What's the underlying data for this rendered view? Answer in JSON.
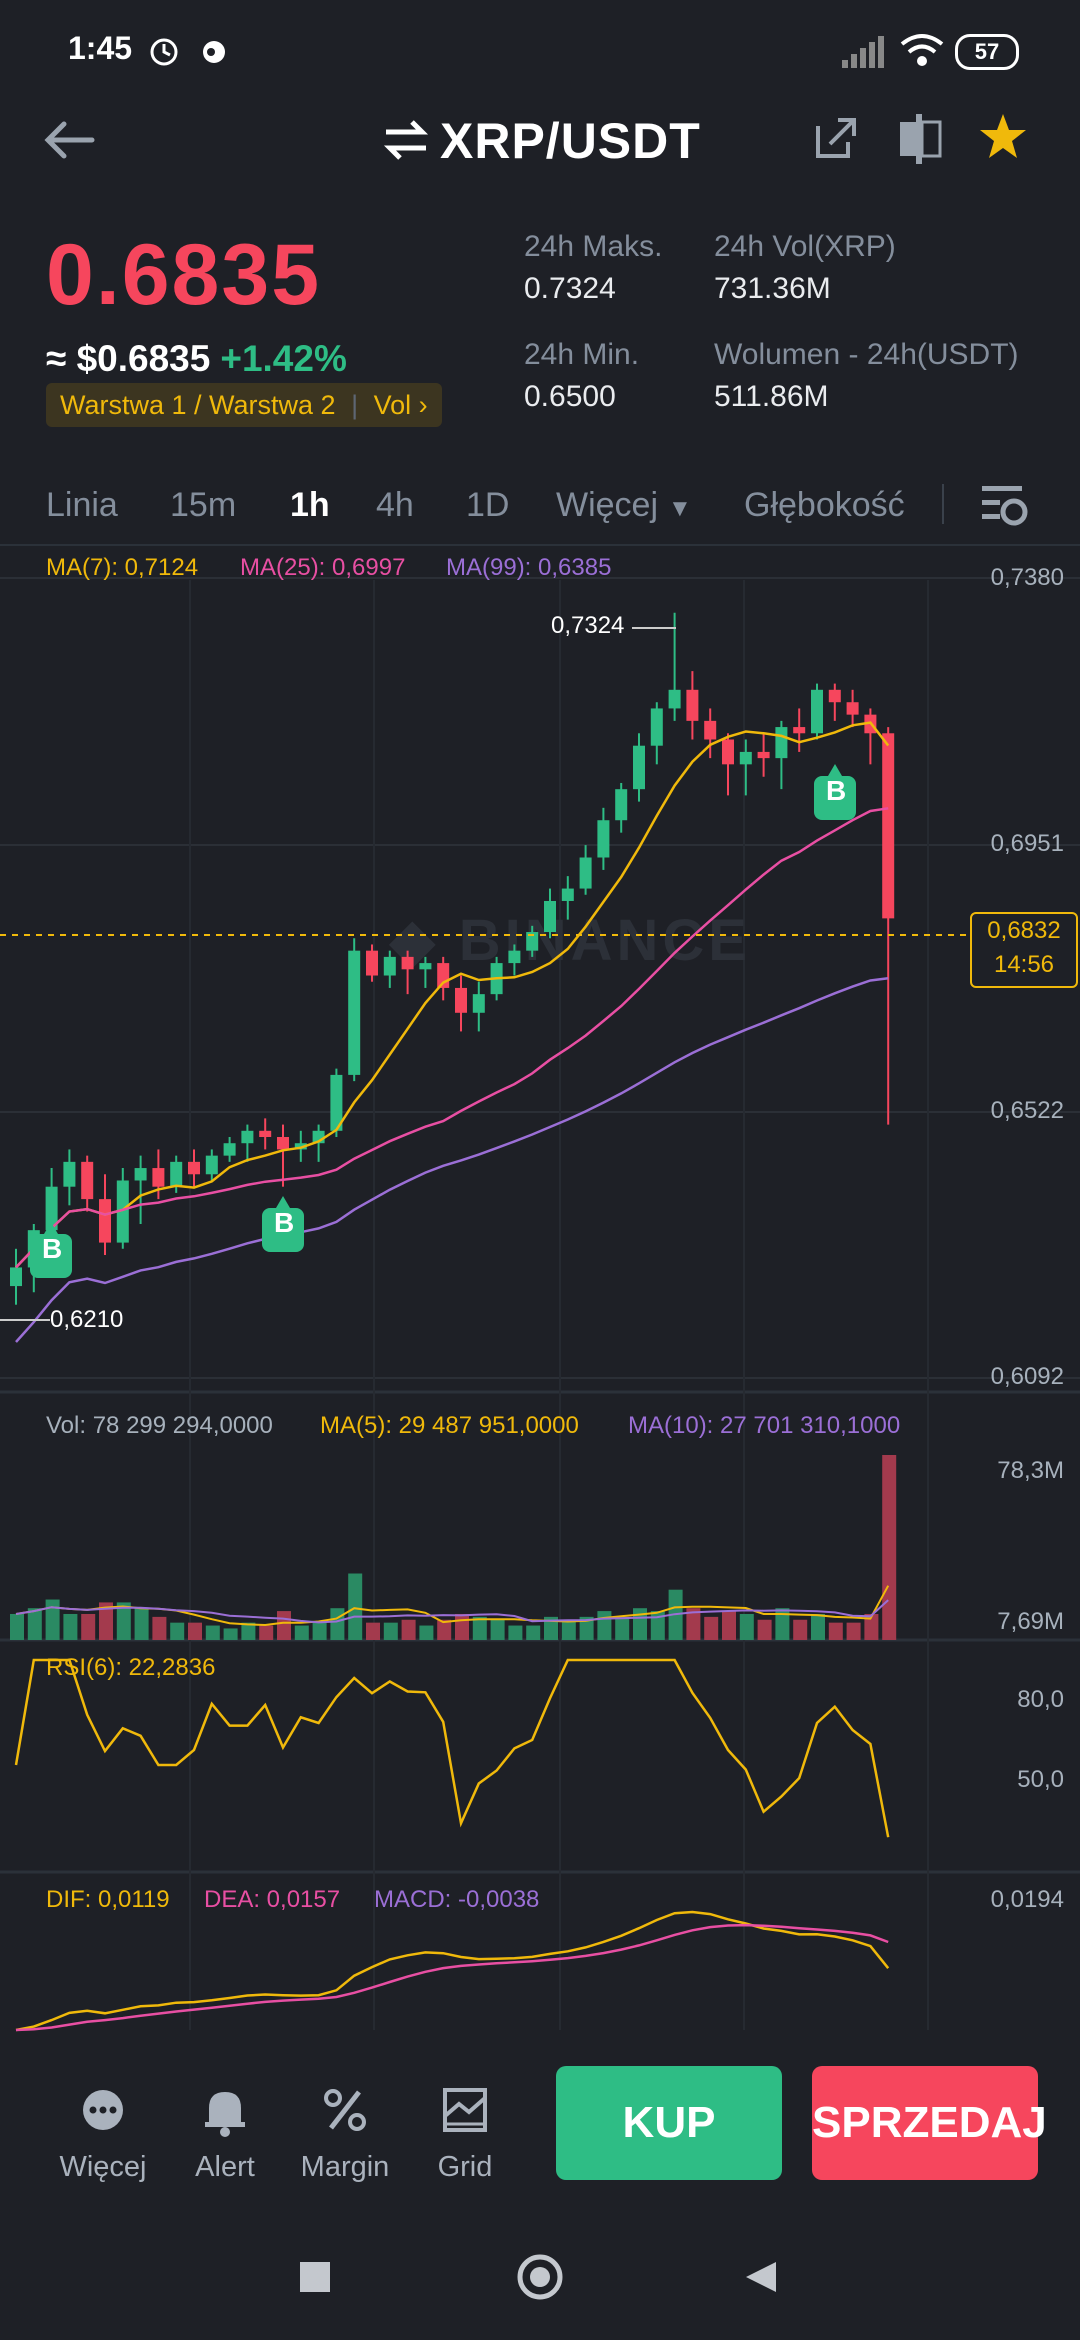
{
  "status_bar": {
    "time": "1:45",
    "battery": "57"
  },
  "header": {
    "pair": "XRP/USDT"
  },
  "ticker": {
    "price": "0.6835",
    "usd_price": "≈ $0.6835",
    "change": "+1.42%",
    "tag_label": "Warstwa 1 / Warstwa 2",
    "tag_vol": "Vol",
    "high_label": "24h Maks.",
    "high_value": "0.7324",
    "vol_xrp_label": "24h Vol(XRP)",
    "vol_xrp_value": "731.36M",
    "low_label": "24h Min.",
    "low_value": "0.6500",
    "vol_usdt_label": "Wolumen - 24h(USDT)",
    "vol_usdt_value": "511.86M"
  },
  "tabs": {
    "line": "Linia",
    "m15": "15m",
    "h1": "1h",
    "h4": "4h",
    "d1": "1D",
    "more": "Więcej",
    "depth": "Głębokość"
  },
  "indicators": {
    "ma7": "MA(7): 0,7124",
    "ma25": "MA(25): 0,6997",
    "ma99": "MA(99): 0,6385",
    "vol": "Vol: 78 299 294,0000",
    "vol_ma5": "MA(5): 29 487 951,0000",
    "vol_ma10": "MA(10): 27 701 310,1000",
    "rsi": "RSI(6): 22,2836",
    "dif": "DIF: 0,0119",
    "dea": "DEA: 0,0157",
    "macd": "MACD: -0,0038"
  },
  "axes": {
    "price_ticks": [
      "0,7380",
      "0,6951",
      "0,6522",
      "0,6092"
    ],
    "vol_ticks": [
      "78,3M",
      "7,69M"
    ],
    "rsi_ticks": [
      "80,0",
      "50,0"
    ],
    "macd_ticks": [
      "0,0194"
    ],
    "current_price": "0,6832",
    "countdown": "14:56",
    "high_marker": "0,7324",
    "low_marker": "0,6210",
    "buy_marker": "B"
  },
  "colors": {
    "up": "#2ebd85",
    "down": "#f6465d",
    "ma7": "#f0b90b",
    "ma25": "#e84fa3",
    "ma99": "#9b6fd6",
    "bg": "#1e2026"
  },
  "chart_data": {
    "type": "candlestick",
    "price_range": [
      0.6092,
      0.738
    ],
    "candles_ohlc": [
      [
        0.624,
        0.63,
        0.621,
        0.627
      ],
      [
        0.627,
        0.634,
        0.623,
        0.633
      ],
      [
        0.633,
        0.643,
        0.629,
        0.64
      ],
      [
        0.64,
        0.646,
        0.637,
        0.644
      ],
      [
        0.644,
        0.645,
        0.636,
        0.638
      ],
      [
        0.638,
        0.642,
        0.629,
        0.631
      ],
      [
        0.631,
        0.643,
        0.63,
        0.641
      ],
      [
        0.641,
        0.645,
        0.634,
        0.643
      ],
      [
        0.643,
        0.646,
        0.638,
        0.64
      ],
      [
        0.64,
        0.645,
        0.639,
        0.644
      ],
      [
        0.644,
        0.646,
        0.64,
        0.642
      ],
      [
        0.642,
        0.646,
        0.641,
        0.645
      ],
      [
        0.645,
        0.648,
        0.644,
        0.647
      ],
      [
        0.647,
        0.65,
        0.644,
        0.649
      ],
      [
        0.649,
        0.651,
        0.646,
        0.648
      ],
      [
        0.648,
        0.65,
        0.64,
        0.646
      ],
      [
        0.646,
        0.649,
        0.644,
        0.647
      ],
      [
        0.647,
        0.65,
        0.644,
        0.649
      ],
      [
        0.649,
        0.659,
        0.648,
        0.658
      ],
      [
        0.658,
        0.68,
        0.657,
        0.678
      ],
      [
        0.678,
        0.679,
        0.673,
        0.674
      ],
      [
        0.674,
        0.678,
        0.672,
        0.677
      ],
      [
        0.677,
        0.678,
        0.671,
        0.675
      ],
      [
        0.675,
        0.677,
        0.672,
        0.676
      ],
      [
        0.676,
        0.677,
        0.67,
        0.672
      ],
      [
        0.672,
        0.674,
        0.665,
        0.668
      ],
      [
        0.668,
        0.673,
        0.665,
        0.671
      ],
      [
        0.671,
        0.677,
        0.67,
        0.676
      ],
      [
        0.676,
        0.679,
        0.674,
        0.678
      ],
      [
        0.678,
        0.682,
        0.677,
        0.681
      ],
      [
        0.681,
        0.688,
        0.68,
        0.686
      ],
      [
        0.686,
        0.69,
        0.683,
        0.688
      ],
      [
        0.688,
        0.695,
        0.687,
        0.693
      ],
      [
        0.693,
        0.701,
        0.691,
        0.699
      ],
      [
        0.699,
        0.705,
        0.697,
        0.704
      ],
      [
        0.704,
        0.713,
        0.702,
        0.711
      ],
      [
        0.711,
        0.718,
        0.708,
        0.717
      ],
      [
        0.717,
        0.7324,
        0.715,
        0.72
      ],
      [
        0.72,
        0.723,
        0.712,
        0.715
      ],
      [
        0.715,
        0.717,
        0.709,
        0.712
      ],
      [
        0.712,
        0.713,
        0.703,
        0.708
      ],
      [
        0.708,
        0.712,
        0.703,
        0.71
      ],
      [
        0.71,
        0.713,
        0.706,
        0.709
      ],
      [
        0.709,
        0.715,
        0.704,
        0.714
      ],
      [
        0.714,
        0.717,
        0.71,
        0.713
      ],
      [
        0.713,
        0.721,
        0.712,
        0.72
      ],
      [
        0.72,
        0.721,
        0.715,
        0.718
      ],
      [
        0.718,
        0.72,
        0.714,
        0.716
      ],
      [
        0.716,
        0.717,
        0.708,
        0.713
      ],
      [
        0.713,
        0.714,
        0.65,
        0.6832
      ]
    ]
  }
}
